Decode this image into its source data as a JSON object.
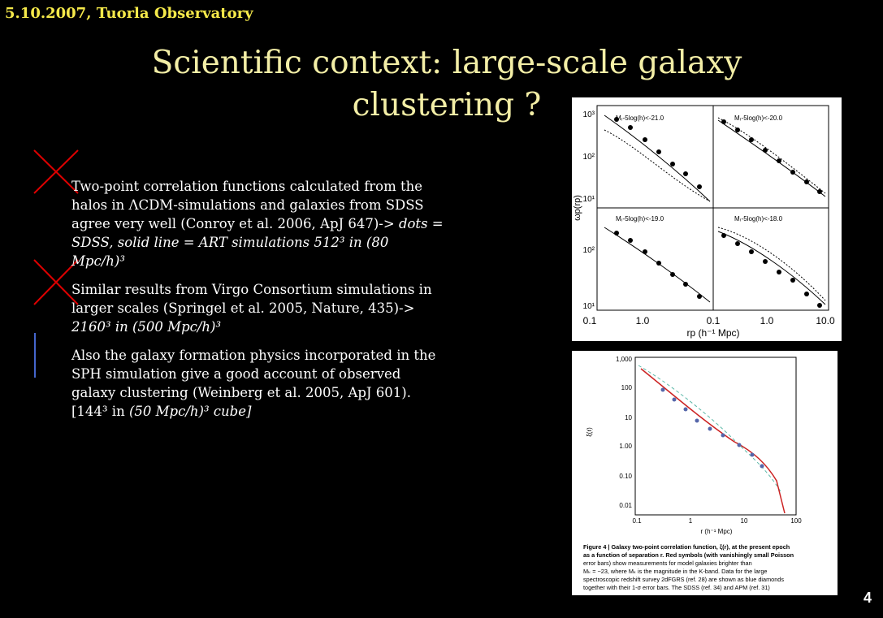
{
  "header": {
    "text": "5.10.2007, Tuorla Observatory"
  },
  "title": {
    "line1": "Scientific context: large-scale galaxy",
    "line2": "clustering ?"
  },
  "bullets": [
    {
      "plain": "Two-point correlation functions calculated from the halos in ΛCDM-simulations and galaxies from SDSS agree very well (Conroy et al. 2006, ApJ 647)-> ",
      "italic": "dots = SDSS, solid line = ART simulations 512³ in (80 Mpc/h)³"
    },
    {
      "plain": "Similar results from Virgo Consortium simulations in larger scales (Springel et al. 2005, Nature, 435)-> ",
      "italic": "2160³ in (500 Mpc/h)³"
    },
    {
      "plain": "Also the galaxy formation physics incorporated in the SPH simulation give a good account of observed galaxy clustering (Weinberg et al. 2005, ApJ 601). [144³ in ",
      "italic": "(50 Mpc/h)³ cube]"
    }
  ],
  "page_number": "4",
  "figure1": {
    "panels": [
      "Mᵣ-5log(h)<-21.0",
      "Mᵣ-5log(h)<-20.0",
      "Mᵣ-5log(h)<-19.0",
      "Mᵣ-5log(h)<-18.0"
    ],
    "y_label": "ωp(rp)",
    "x_label": "rp (h⁻¹ Mpc)",
    "y_ticks_top": [
      "10³",
      "10²",
      "10¹"
    ],
    "y_ticks_bottom": [
      "10²",
      "10¹"
    ],
    "x_ticks": [
      "0.1",
      "1.0",
      "0.1",
      "1.0",
      "10.0"
    ]
  },
  "figure2": {
    "y_label": "ξ(r)",
    "x_label": "r (h⁻¹ Mpc)",
    "y_ticks": [
      "1,000",
      "100",
      "10",
      "1.00",
      "0.10",
      "0.01"
    ],
    "x_ticks": [
      "0.1",
      "1",
      "10",
      "100"
    ],
    "caption": [
      "Figure 4 | Galaxy two-point correlation function, ξ(r), at the present epoch",
      "as a function of separation r.  Red symbols (with vanishingly small Poisson",
      "error bars) show measurements for model galaxies brighter than",
      "Mₖ = −23, where Mₖ is the magnitude in the K-band. Data for the large",
      "spectroscopic redshift survey 2dFGRS (ref. 28) are shown as blue diamonds",
      "together with their 1-σ error bars. The SDSS (ref. 34) and APM (ref. 31)"
    ]
  }
}
